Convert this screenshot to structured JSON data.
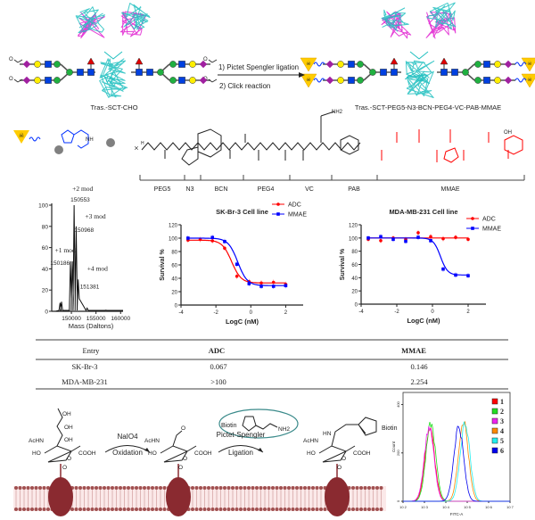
{
  "scheme": {
    "reaction_steps": [
      "1) Pictet Spengler ligation",
      "2) Click reaction"
    ],
    "start_label": "Tras.-SCT-CHO",
    "product_label": "Tras.-SCT-PEG5-N3-BCN-PEG4-VC-PAB-MMAE",
    "linker_segments": [
      {
        "label": "PEG5",
        "color": "#222222"
      },
      {
        "label": "N3",
        "color": "#222222"
      },
      {
        "label": "BCN",
        "color": "#222222"
      },
      {
        "label": "PEG4",
        "color": "#222222"
      },
      {
        "label": "VC",
        "color": "#222222"
      },
      {
        "label": "PAB",
        "color": "#222222"
      },
      {
        "label": "MMAE",
        "color": "#ff0000"
      }
    ],
    "atoms": {
      "nh2": "NH2",
      "nh": "NH",
      "oh": "OH",
      "h": "H"
    }
  },
  "chart_data": [
    {
      "type": "line",
      "xlabel": "Mass (Daltons)",
      "ylabel": "",
      "xlim": [
        146000,
        160500
      ],
      "ylim": [
        0,
        100
      ],
      "xticks": [
        150000,
        155000,
        160000
      ],
      "yticks": [
        0,
        20,
        40,
        60,
        80,
        100
      ],
      "peaks": [
        {
          "mass": 147700,
          "intensity": 8
        },
        {
          "mass": 148000,
          "intensity": 9
        },
        {
          "mass": 149800,
          "intensity": 47
        },
        {
          "mass": 150186,
          "intensity": 47,
          "label": "150186",
          "annotation": "+1 mod"
        },
        {
          "mass": 150553,
          "intensity": 100,
          "label": "150553",
          "annotation": "+2 mod"
        },
        {
          "mass": 150968,
          "intensity": 80,
          "label": "150968",
          "annotation": "+3 mod"
        },
        {
          "mass": 151381,
          "intensity": 30,
          "label": "151381",
          "annotation": "+4 mod"
        },
        {
          "mass": 153200,
          "intensity": 3
        },
        {
          "mass": 157000,
          "intensity": 1
        }
      ],
      "annotation_color": "#ff0000"
    },
    {
      "type": "scatter",
      "title": "SK-Br-3 Cell line",
      "xlabel": "LogC (nM)",
      "ylabel": "Survival %",
      "xlim": [
        -4,
        3
      ],
      "ylim": [
        0,
        120
      ],
      "xticks": [
        -4,
        -2,
        0,
        2
      ],
      "yticks": [
        0,
        20,
        40,
        60,
        80,
        100,
        120
      ],
      "legend": "top-right",
      "series": [
        {
          "name": "ADC",
          "color": "#ff0000",
          "x": [
            -3.6,
            -2.9,
            -2.2,
            -1.5,
            -0.8,
            -0.1,
            0.6,
            1.3,
            2.0
          ],
          "y": [
            97,
            98,
            96,
            85,
            43,
            35,
            33,
            34,
            31
          ]
        },
        {
          "name": "MMAE",
          "color": "#0000ff",
          "x": [
            -3.6,
            -2.2,
            -1.5,
            -0.8,
            -0.1,
            0.6,
            1.3,
            2.0
          ],
          "y": [
            100,
            101,
            95,
            61,
            32,
            28,
            28,
            29
          ]
        }
      ]
    },
    {
      "type": "scatter",
      "title": "MDA-MB-231 Cell line",
      "xlabel": "LogC (nM)",
      "ylabel": "Survival %",
      "xlim": [
        -4,
        3
      ],
      "ylim": [
        0,
        120
      ],
      "xticks": [
        -4,
        -2,
        0,
        2
      ],
      "yticks": [
        0,
        20,
        40,
        60,
        80,
        100,
        120
      ],
      "legend": "top-right",
      "series": [
        {
          "name": "ADC",
          "color": "#ff0000",
          "x": [
            -3.6,
            -2.9,
            -2.2,
            -1.5,
            -0.8,
            -0.1,
            0.6,
            1.3,
            2.0
          ],
          "y": [
            98,
            96,
            100,
            98,
            108,
            102,
            99,
            101,
            98
          ]
        },
        {
          "name": "MMAE",
          "color": "#0000ff",
          "x": [
            -3.6,
            -2.9,
            -2.2,
            -1.5,
            -0.8,
            -0.1,
            0.6,
            1.3,
            2.0
          ],
          "y": [
            100,
            102,
            98,
            95,
            101,
            96,
            53,
            44,
            43
          ]
        }
      ]
    },
    {
      "type": "line",
      "xlabel": "FITC-A",
      "ylabel": "Count",
      "xscale": "log",
      "xlim": [
        100,
        10000000
      ],
      "xticks": [
        "10 2",
        "10 3",
        "10 4",
        "10 5",
        "10 6",
        "10 7"
      ],
      "yticks": [
        0,
        200,
        400
      ],
      "ylim": [
        0,
        450
      ],
      "legend": "top-right",
      "series": [
        {
          "name": "1",
          "color": "#ff0000",
          "peak_log": 3.25,
          "height": 300
        },
        {
          "name": "2",
          "color": "#22dd22",
          "peak_log": 3.3,
          "height": 320
        },
        {
          "name": "3",
          "color": "#ee22ee",
          "peak_log": 3.22,
          "height": 305
        },
        {
          "name": "4",
          "color": "#ff8800",
          "peak_log": 4.82,
          "height": 335
        },
        {
          "name": "5",
          "color": "#22eeee",
          "peak_log": 4.9,
          "height": 325
        },
        {
          "name": "6",
          "color": "#0000ee",
          "peak_log": 4.6,
          "height": 310
        }
      ]
    }
  ],
  "table": {
    "headers": [
      "Entry",
      "ADC",
      "MMAE"
    ],
    "rows": [
      [
        "SK-Br-3",
        "0.067",
        "0.146"
      ],
      [
        "MDA-MB-231",
        ">100",
        "2.254"
      ]
    ]
  },
  "labeling": {
    "reagent1": "NaIO4",
    "step1": "Oxidation",
    "reagent2": "Pictet-Spengler",
    "step2": "Ligation",
    "biotin": "Biotin",
    "groups": {
      "achn": "AcHN",
      "ho": "HO",
      "oh": "OH",
      "cooh": "COOH",
      "nh2": "NH2",
      "hn": "HN",
      "o": "O",
      "n": "N"
    }
  }
}
